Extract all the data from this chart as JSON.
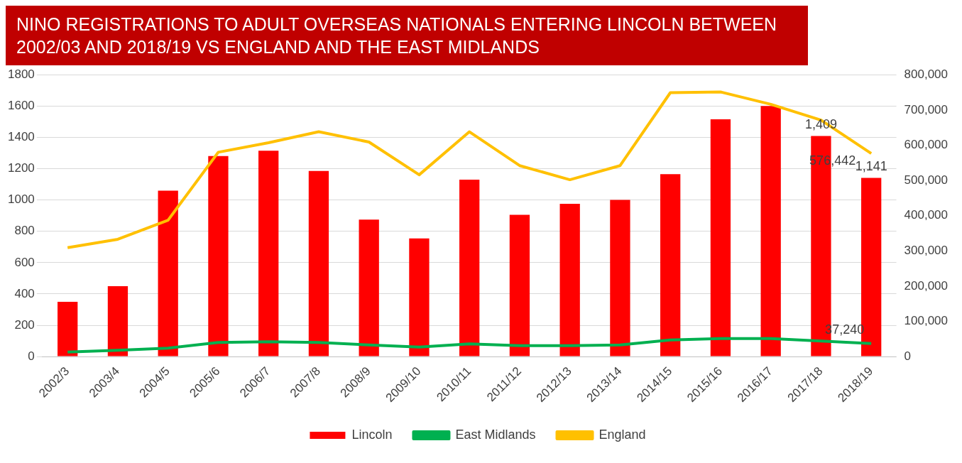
{
  "chart_data": {
    "type": "bar",
    "title": "NINO REGISTRATIONS TO ADULT OVERSEAS NATIONALS ENTERING LINCOLN BETWEEN 2002/03 AND 2018/19 VS ENGLAND AND THE EAST MIDLANDS",
    "categories": [
      "2002/3",
      "2003/4",
      "2004/5",
      "2005/6",
      "2006/7",
      "2007/8",
      "2008/9",
      "2009/10",
      "2010/11",
      "2011/12",
      "2012/13",
      "2013/14",
      "2014/15",
      "2015/16",
      "2016/17",
      "2017/18",
      "2018/19"
    ],
    "series": [
      {
        "name": "Lincoln",
        "color": "#ff0000",
        "values": [
          350,
          450,
          1060,
          1280,
          1315,
          1185,
          875,
          755,
          1130,
          905,
          975,
          1000,
          1165,
          1515,
          1600,
          1409,
          1141
        ],
        "value_labels": [
          null,
          null,
          null,
          null,
          null,
          null,
          null,
          null,
          null,
          null,
          null,
          null,
          null,
          null,
          null,
          "1,409",
          "1,141"
        ]
      },
      {
        "name": "East Midlands",
        "type": "line",
        "axis": "y2",
        "color": "#00b050",
        "values": [
          13000,
          18000,
          24000,
          40000,
          42000,
          40000,
          33000,
          27000,
          36000,
          31000,
          31000,
          33000,
          47000,
          51000,
          51000,
          44000,
          37240
        ],
        "value_labels": [
          null,
          null,
          null,
          null,
          null,
          null,
          null,
          null,
          null,
          null,
          null,
          null,
          null,
          null,
          null,
          null,
          "37,240"
        ]
      },
      {
        "name": "England",
        "type": "line",
        "axis": "y2",
        "color": "#ffc000",
        "values": [
          309000,
          333000,
          387000,
          580000,
          607000,
          638000,
          609000,
          516000,
          638000,
          542000,
          502000,
          542000,
          749000,
          751000,
          716000,
          671000,
          576442
        ],
        "value_labels": [
          null,
          null,
          null,
          null,
          null,
          null,
          null,
          null,
          null,
          null,
          null,
          null,
          null,
          null,
          null,
          null,
          "576,442"
        ]
      }
    ],
    "ylim": [
      0,
      1800
    ],
    "yticks": [
      0,
      200,
      400,
      600,
      800,
      1000,
      1200,
      1400,
      1600,
      1800
    ],
    "y2lim": [
      0,
      800000
    ],
    "y2ticks": [
      {
        "value": 0,
        "label": "0"
      },
      {
        "value": 100000,
        "label": "100,000"
      },
      {
        "value": 200000,
        "label": "200,000"
      },
      {
        "value": 300000,
        "label": "300,000"
      },
      {
        "value": 400000,
        "label": "400,000"
      },
      {
        "value": 500000,
        "label": "500,000"
      },
      {
        "value": 600000,
        "label": "600,000"
      },
      {
        "value": 700000,
        "label": "700,000"
      },
      {
        "value": 800000,
        "label": "800,000"
      }
    ],
    "grid": "y",
    "legend": "bottom",
    "marker": "none",
    "line_style": "solid"
  }
}
